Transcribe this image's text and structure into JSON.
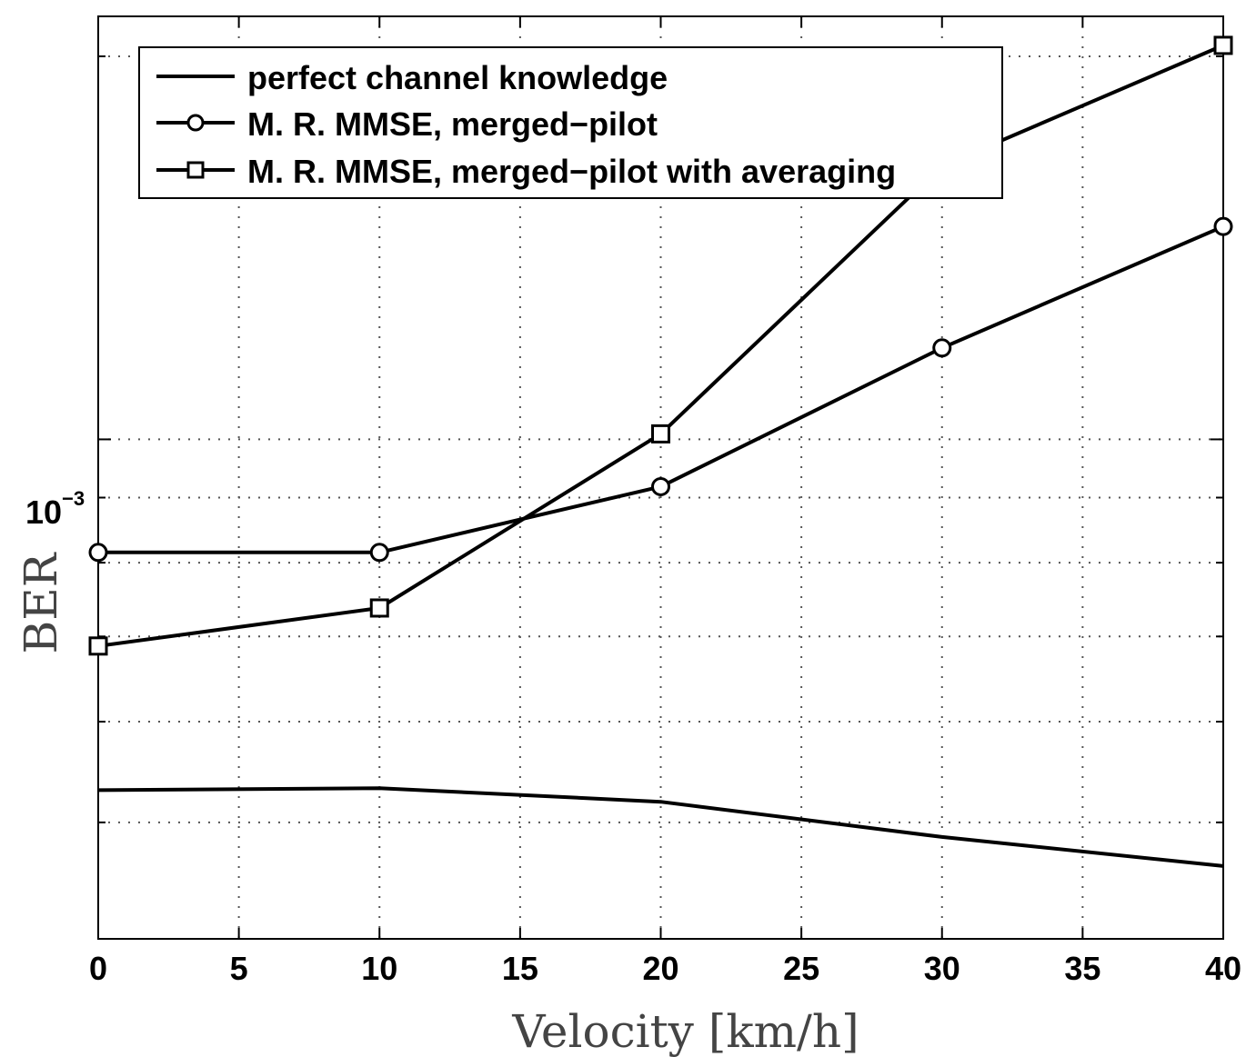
{
  "chart_data": {
    "type": "line",
    "xlabel": "Velocity [km/h]",
    "ylabel": "BER",
    "y_scale": "log",
    "xlim": [
      0,
      40
    ],
    "ylim": [
      0.000405,
      0.00215
    ],
    "grid": true,
    "legend_position": "top-left",
    "x_ticks": [
      "0",
      "5",
      "10",
      "15",
      "20",
      "25",
      "30",
      "35",
      "40"
    ],
    "y_tick_label": {
      "base": "10",
      "exponent": "−3"
    },
    "series": [
      {
        "name": "perfect channel knowledge",
        "marker": "none",
        "x": [
          0,
          10,
          20,
          30,
          40
        ],
        "y": [
          0.00053,
          0.000532,
          0.000519,
          0.000487,
          0.000462
        ]
      },
      {
        "name": "M. R. MMSE, merged−pilot",
        "marker": "circle",
        "x": [
          0,
          10,
          20,
          30,
          40
        ],
        "y": [
          0.000815,
          0.000815,
          0.000918,
          0.00118,
          0.00147
        ]
      },
      {
        "name": "M. R. MMSE, merged−pilot with averaging",
        "marker": "square",
        "x": [
          0,
          10,
          20,
          30,
          40
        ],
        "y": [
          0.000688,
          0.000737,
          0.00101,
          0.00164,
          0.00204
        ]
      }
    ]
  }
}
